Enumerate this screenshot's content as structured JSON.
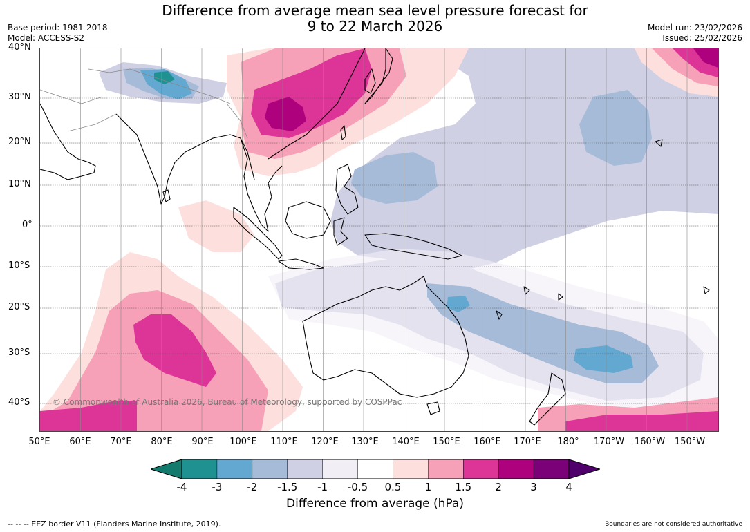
{
  "title": {
    "line1": "Difference from average mean sea level pressure forecast for",
    "line2": "9 to 22 March 2026"
  },
  "meta": {
    "base_period": "Base period: 1981-2018",
    "model": "Model: ACCESS-S2",
    "model_run": "Model run: 23/02/2026",
    "issued": "Issued: 25/02/2026"
  },
  "map": {
    "lat_labels": [
      "40°N",
      "30°N",
      "20°N",
      "10°N",
      "0°",
      "10°S",
      "20°S",
      "30°S",
      "40°S"
    ],
    "lon_labels": [
      "50°E",
      "60°E",
      "70°E",
      "80°E",
      "90°E",
      "100°E",
      "110°E",
      "120°E",
      "130°E",
      "140°E",
      "150°E",
      "160°E",
      "170°E",
      "180°",
      "170°W",
      "160°W",
      "150°W"
    ],
    "copyright": "© Commonwealth of Australia 2026, Bureau of Meteorology, supported by COSPPac"
  },
  "colorbar": {
    "ticks": [
      "-4",
      "-3",
      "-2",
      "-1.5",
      "-1",
      "-0.5",
      "0.5",
      "1",
      "1.5",
      "2",
      "3",
      "4"
    ],
    "colors": [
      "#1f9191",
      "#63a8d0",
      "#a6bbd8",
      "#d0d0e4",
      "#f1eef6",
      "#ffffff",
      "#fde0dd",
      "#f7a1b9",
      "#dd3497",
      "#ae017e",
      "#7a0177"
    ],
    "under_color": "#137a6e",
    "over_color": "#4f006b",
    "label": "Difference from average (hPa)"
  },
  "footer": {
    "eez": "--  --  -- EEZ border V11 (Flanders Marine Institute, 2019).",
    "boundaries": "Boundaries are not considered authoritative"
  }
}
